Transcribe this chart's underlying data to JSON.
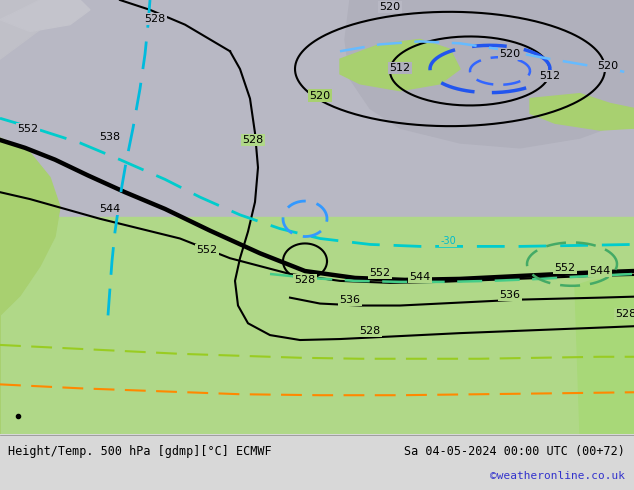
{
  "title_left": "Height/Temp. 500 hPa [gdmp][°C] ECMWF",
  "title_right": "Sa 04-05-2024 00:00 UTC (00+72)",
  "title_right2": "©weatheronline.co.uk",
  "bg_gray": "#b8b8c0",
  "bg_green": "#b0d890",
  "bg_green_dark": "#98c878",
  "bg_green_light": "#c8e8a8",
  "land_gray": "#b0b0b8",
  "bottom_bg": "#d8d8d8",
  "figsize": [
    6.34,
    4.9
  ],
  "dpi": 100
}
